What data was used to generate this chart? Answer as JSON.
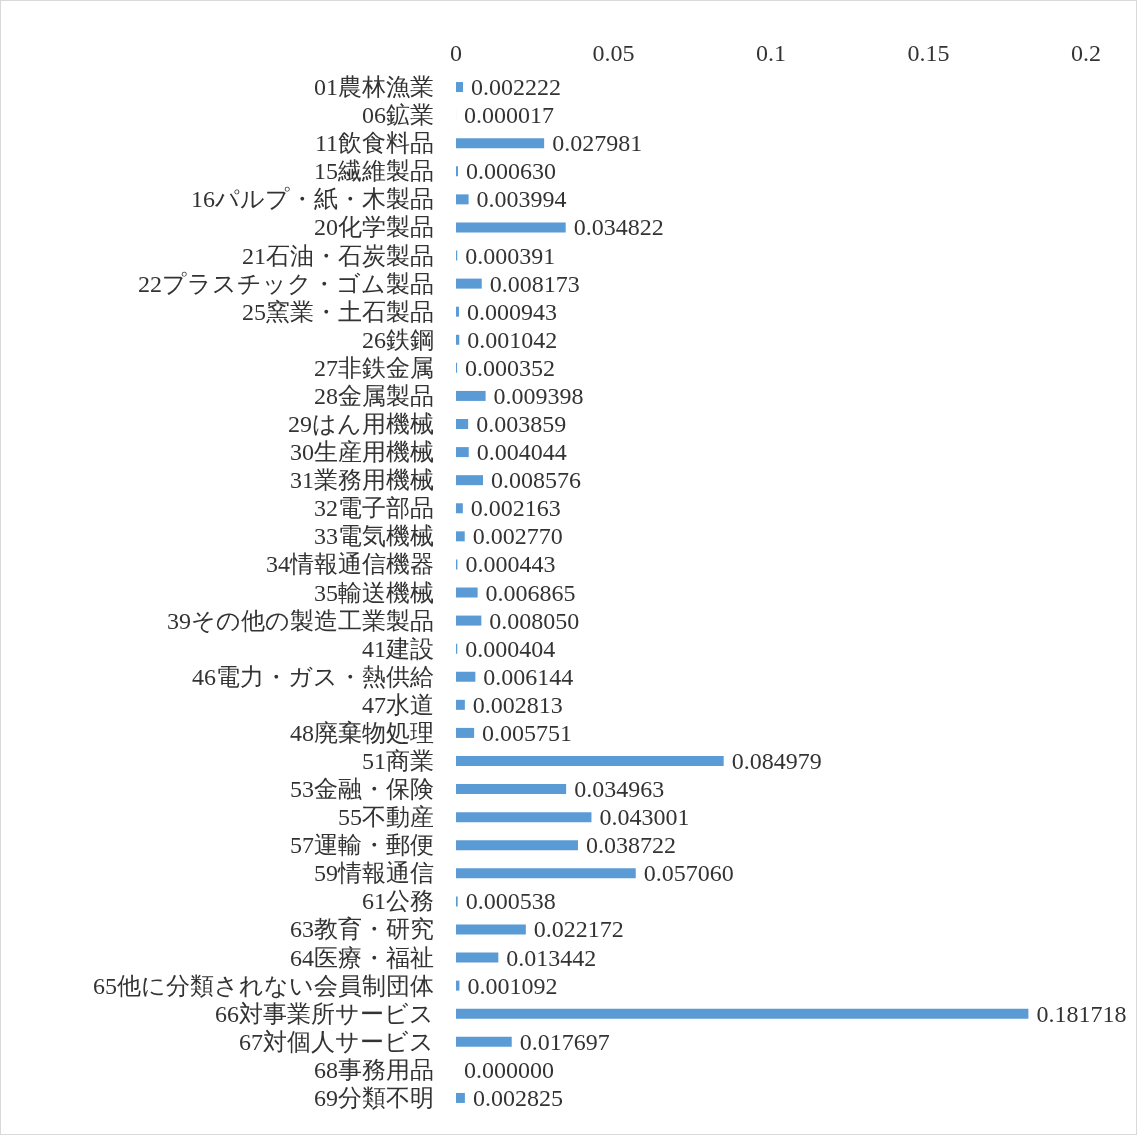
{
  "chart_data": {
    "type": "bar",
    "orientation": "horizontal",
    "color": "#5b9bd5",
    "categories": [
      "01農林漁業",
      "06鉱業",
      "11飲食料品",
      "15繊維製品",
      "16パルプ・紙・木製品",
      "20化学製品",
      "21石油・石炭製品",
      "22プラスチック・ゴム製品",
      "25窯業・土石製品",
      "26鉄鋼",
      "27非鉄金属",
      "28金属製品",
      "29はん用機械",
      "30生産用機械",
      "31業務用機械",
      "32電子部品",
      "33電気機械",
      "34情報通信機器",
      "35輸送機械",
      "39その他の製造工業製品",
      "41建設",
      "46電力・ガス・熱供給",
      "47水道",
      "48廃棄物処理",
      "51商業",
      "53金融・保険",
      "55不動産",
      "57運輸・郵便",
      "59情報通信",
      "61公務",
      "63教育・研究",
      "64医療・福祉",
      "65他に分類されない会員制団体",
      "66対事業所サービス",
      "67対個人サービス",
      "68事務用品",
      "69分類不明"
    ],
    "values": [
      0.002222,
      1.7e-05,
      0.027981,
      0.00063,
      0.003994,
      0.034822,
      0.000391,
      0.008173,
      0.000943,
      0.001042,
      0.000352,
      0.009398,
      0.003859,
      0.004044,
      0.008576,
      0.002163,
      0.00277,
      0.000443,
      0.006865,
      0.00805,
      0.000404,
      0.006144,
      0.002813,
      0.005751,
      0.084979,
      0.034963,
      0.043001,
      0.038722,
      0.05706,
      0.000538,
      0.022172,
      0.013442,
      0.001092,
      0.181718,
      0.017697,
      0.0,
      0.002825
    ],
    "value_labels": [
      "0.002222",
      "0.000017",
      "0.027981",
      "0.000630",
      "0.003994",
      "0.034822",
      "0.000391",
      "0.008173",
      "0.000943",
      "0.001042",
      "0.000352",
      "0.009398",
      "0.003859",
      "0.004044",
      "0.008576",
      "0.002163",
      "0.002770",
      "0.000443",
      "0.006865",
      "0.008050",
      "0.000404",
      "0.006144",
      "0.002813",
      "0.005751",
      "0.084979",
      "0.034963",
      "0.043001",
      "0.038722",
      "0.057060",
      "0.000538",
      "0.022172",
      "0.013442",
      "0.001092",
      "0.181718",
      "0.017697",
      "0.000000",
      "0.002825"
    ],
    "xlim": [
      0,
      0.2
    ],
    "xticks": [
      0,
      0.05,
      0.1,
      0.15,
      0.2
    ]
  }
}
